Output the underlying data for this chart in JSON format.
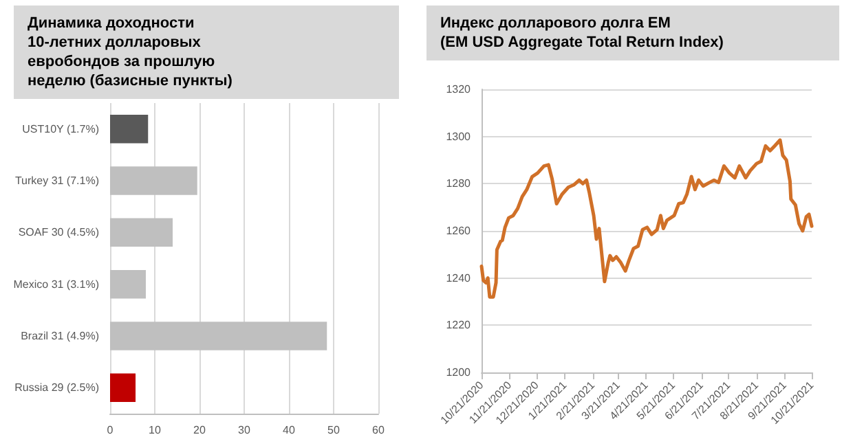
{
  "chart_data": [
    {
      "type": "bar",
      "orientation": "horizontal",
      "title": "Динамика доходности 10-летних долларовых евробондов за прошлую неделю (базисные пункты)",
      "categories": [
        "UST10Y (1.7%)",
        "Turkey 31 (7.1%)",
        "SOAF 30 (4.5%)",
        "Mexico 31 (3.1%)",
        "Brazil 31 (4.9%)",
        "Russia 29 (2.5%)"
      ],
      "values": [
        8.5,
        19.5,
        14,
        8,
        48.5,
        5.7
      ],
      "colors": [
        "#595959",
        "#bfbfbf",
        "#bfbfbf",
        "#bfbfbf",
        "#bfbfbf",
        "#c00000"
      ],
      "xlim": [
        0,
        60
      ],
      "xticks": [
        0,
        10,
        20,
        30,
        40,
        50,
        60
      ],
      "grid": "x"
    },
    {
      "type": "line",
      "title": "Индекс долларового долга EM (EM USD Aggregate Total Return Index)",
      "x": [
        "2020-10-21",
        "2020-10-23",
        "2020-10-26",
        "2020-10-28",
        "2020-10-30",
        "2020-11-03",
        "2020-11-06",
        "2020-11-07",
        "2020-11-11",
        "2020-11-13",
        "2020-11-16",
        "2020-11-20",
        "2020-11-25",
        "2020-11-30",
        "2020-12-05",
        "2020-12-10",
        "2020-12-16",
        "2020-12-22",
        "2020-12-29",
        "2021-01-03",
        "2021-01-07",
        "2021-01-12",
        "2021-01-18",
        "2021-01-25",
        "2021-01-31",
        "2021-02-06",
        "2021-02-10",
        "2021-02-14",
        "2021-02-17",
        "2021-02-22",
        "2021-02-25",
        "2021-02-28",
        "2021-03-02",
        "2021-03-06",
        "2021-03-10",
        "2021-03-12",
        "2021-03-15",
        "2021-03-19",
        "2021-03-24",
        "2021-03-29",
        "2021-04-02",
        "2021-04-07",
        "2021-04-12",
        "2021-04-17",
        "2021-04-22",
        "2021-04-27",
        "2021-05-03",
        "2021-05-07",
        "2021-05-10",
        "2021-05-14",
        "2021-05-22",
        "2021-05-27",
        "2021-06-01",
        "2021-06-05",
        "2021-06-10",
        "2021-06-14",
        "2021-06-18",
        "2021-06-23",
        "2021-06-30",
        "2021-07-05",
        "2021-07-10",
        "2021-07-16",
        "2021-07-22",
        "2021-07-28",
        "2021-08-02",
        "2021-08-09",
        "2021-08-14",
        "2021-08-21",
        "2021-08-26",
        "2021-08-31",
        "2021-09-05",
        "2021-09-10",
        "2021-09-16",
        "2021-09-19",
        "2021-09-23",
        "2021-09-27",
        "2021-09-28",
        "2021-10-03",
        "2021-10-07",
        "2021-10-11",
        "2021-10-15",
        "2021-10-18",
        "2021-10-21"
      ],
      "series": [
        {
          "color": "#d07028",
          "values": [
            1245,
            1239,
            1238,
            1240,
            1232,
            1232,
            1238,
            1252,
            1255.5,
            1256,
            1261.5,
            1265.5,
            1266.5,
            1269.5,
            1274.5,
            1277.5,
            1283,
            1284.5,
            1287.5,
            1288,
            1282,
            1271.5,
            1275.5,
            1278.5,
            1279.5,
            1281.5,
            1280,
            1281.5,
            1276.5,
            1266.5,
            1256.5,
            1261,
            1253.5,
            1238.5,
            1246.5,
            1249.5,
            1247.5,
            1249,
            1246.5,
            1243,
            1247.5,
            1252.5,
            1253.5,
            1260.5,
            1261.5,
            1258.5,
            1260.5,
            1266.5,
            1261,
            1264.5,
            1266.5,
            1271.5,
            1272,
            1275.5,
            1283,
            1277.5,
            1281.5,
            1279,
            1280.5,
            1281.5,
            1280.5,
            1287.5,
            1284.5,
            1282.5,
            1287.5,
            1282.5,
            1285.5,
            1288.5,
            1289.5,
            1296,
            1294,
            1296,
            1298.5,
            1292,
            1290,
            1281,
            1273.5,
            1271,
            1263,
            1260,
            1266,
            1267,
            1262
          ]
        }
      ],
      "xlim": [
        "2020-10-21",
        "2021-10-21"
      ],
      "xticks": [
        {
          "value": "2020-10-21",
          "label": "10/21/2020"
        },
        {
          "value": "2020-11-21",
          "label": "11/21/2020"
        },
        {
          "value": "2020-12-21",
          "label": "12/21/2020"
        },
        {
          "value": "2021-01-21",
          "label": "1/21/2021"
        },
        {
          "value": "2021-02-21",
          "label": "2/21/2021"
        },
        {
          "value": "2021-03-21",
          "label": "3/21/2021"
        },
        {
          "value": "2021-04-21",
          "label": "4/21/2021"
        },
        {
          "value": "2021-05-21",
          "label": "5/21/2021"
        },
        {
          "value": "2021-06-21",
          "label": "6/21/2021"
        },
        {
          "value": "2021-07-21",
          "label": "7/21/2021"
        },
        {
          "value": "2021-08-21",
          "label": "8/21/2021"
        },
        {
          "value": "2021-09-21",
          "label": "9/21/2021"
        },
        {
          "value": "2021-10-21",
          "label": "10/21/2021"
        }
      ],
      "ylim": [
        1200,
        1320
      ],
      "yticks": [
        1200,
        1220,
        1240,
        1260,
        1280,
        1300,
        1320
      ],
      "grid": "y",
      "marker": "none",
      "line_style": "solid"
    }
  ]
}
